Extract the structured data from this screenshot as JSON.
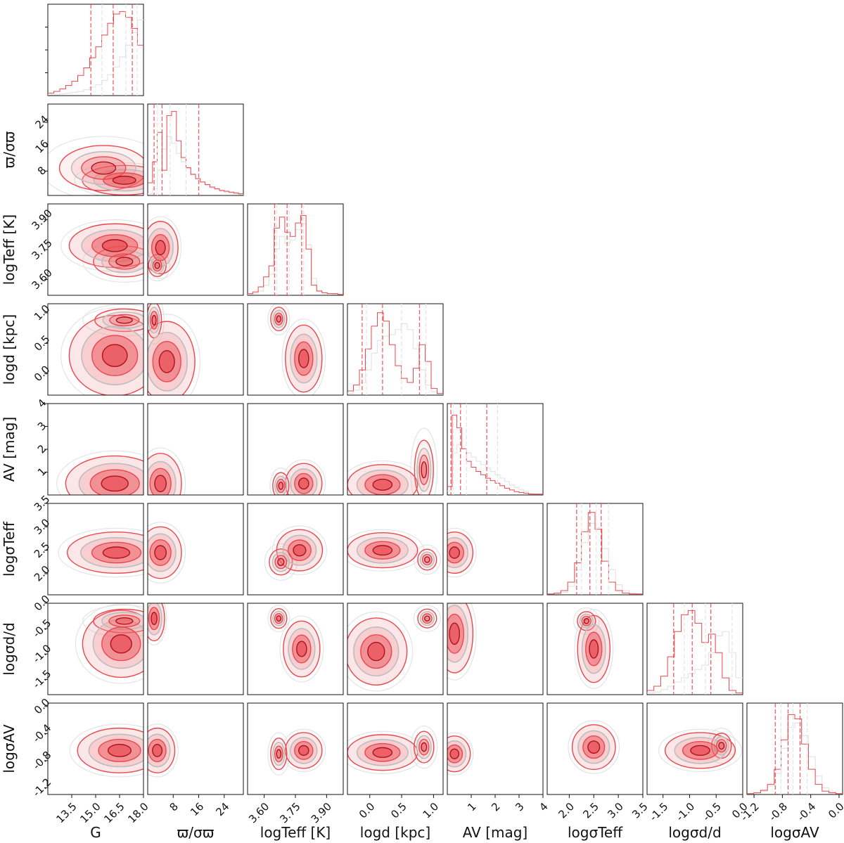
{
  "chart_data": {
    "type": "corner",
    "title": "",
    "series_colors": {
      "primary": "#e8484e",
      "primary_dark": "#b0101a",
      "primary_fill": "#f3a0a3",
      "comparison": "#bdbdbd",
      "comparison_light": "#e4e4e4",
      "frame": "#111111"
    },
    "parameters": [
      {
        "key": "G",
        "xlabel": "G",
        "ylabel": "",
        "range": [
          12.0,
          18.0
        ],
        "ticks": [
          "13.5",
          "15.0",
          "16.5",
          "18.0"
        ],
        "tick_values": [
          13.5,
          15.0,
          16.5,
          18.0
        ]
      },
      {
        "key": "plx_snr",
        "xlabel": "ϖ/σϖ",
        "ylabel": "ϖ/σϖ",
        "range": [
          0,
          30
        ],
        "ticks": [
          "8",
          "16",
          "24"
        ],
        "tick_values": [
          8,
          16,
          24
        ]
      },
      {
        "key": "logTeff",
        "xlabel": "logTeff [K]",
        "ylabel": "logTeff [K]",
        "range": [
          3.52,
          3.98
        ],
        "ticks": [
          "3.60",
          "3.75",
          "3.90"
        ],
        "tick_values": [
          3.6,
          3.75,
          3.9
        ]
      },
      {
        "key": "logd",
        "xlabel": "logd [kpc]",
        "ylabel": "logd [kpc]",
        "range": [
          -0.35,
          1.15
        ],
        "ticks": [
          "0.0",
          "0.5",
          "1.0"
        ],
        "tick_values": [
          0.0,
          0.5,
          1.0
        ]
      },
      {
        "key": "AV",
        "xlabel": "AV [mag]",
        "ylabel": "AV [mag]",
        "range": [
          0,
          4
        ],
        "ticks": [
          "1",
          "2",
          "3",
          "4"
        ],
        "tick_values": [
          1,
          2,
          3,
          4
        ]
      },
      {
        "key": "logsigTeff",
        "xlabel": "logσTeff",
        "ylabel": "logσTeff",
        "range": [
          1.55,
          3.5
        ],
        "ticks": [
          "2.0",
          "2.5",
          "3.0",
          "3.5"
        ],
        "tick_values": [
          2.0,
          2.5,
          3.0,
          3.5
        ]
      },
      {
        "key": "logsigd",
        "xlabel": "logσd/d",
        "ylabel": "logσd/d",
        "range": [
          -1.8,
          0.0
        ],
        "ticks": [
          "-1.5",
          "-1.0",
          "-0.5",
          "0.0"
        ],
        "tick_values": [
          -1.5,
          -1.0,
          -0.5,
          0.0
        ]
      },
      {
        "key": "logsigAV",
        "xlabel": "logσAV",
        "ylabel": "logσAV",
        "range": [
          -1.3,
          0.05
        ],
        "ticks": [
          "-1.2",
          "-0.8",
          "-0.4",
          "0.0"
        ],
        "tick_values": [
          -1.2,
          -0.8,
          -0.4,
          0.0
        ]
      }
    ],
    "histograms": [
      {
        "param": "G",
        "primary": [
          0.03,
          0.05,
          0.08,
          0.12,
          0.17,
          0.24,
          0.33,
          0.45,
          0.58,
          0.72,
          0.86,
          0.97,
          1.0,
          0.93,
          0.8,
          0.6
        ],
        "comparison": [
          0.01,
          0.01,
          0.02,
          0.03,
          0.04,
          0.05,
          0.07,
          0.1,
          0.13,
          0.18,
          0.25,
          0.34,
          0.46,
          0.6,
          0.75,
          0.9
        ],
        "quantiles_primary": [
          14.7,
          16.1,
          17.3
        ],
        "quantiles_comparison": [
          15.4,
          16.9,
          17.6
        ]
      },
      {
        "param": "plx_snr",
        "primary": [
          0.15,
          0.4,
          0.75,
          0.3,
          0.95,
          1.0,
          0.65,
          0.45,
          0.33,
          0.25,
          0.2,
          0.16,
          0.13,
          0.1,
          0.08,
          0.06,
          0.05,
          0.04,
          0.03,
          0.02
        ],
        "comparison": [
          0.02,
          0.08,
          0.3,
          0.55,
          0.7,
          0.62,
          0.5,
          0.4,
          0.32,
          0.26,
          0.2,
          0.16,
          0.12,
          0.09,
          0.07,
          0.05,
          0.04,
          0.03,
          0.02,
          0.01
        ],
        "quantiles_primary": [
          2.0,
          4.5,
          16.0
        ],
        "quantiles_comparison": [
          3.0,
          7.0,
          12.0
        ]
      },
      {
        "param": "logTeff",
        "primary": [
          0.02,
          0.04,
          0.1,
          0.22,
          0.35,
          0.8,
          0.93,
          0.75,
          0.7,
          0.86,
          0.95,
          0.55,
          0.12,
          0.05,
          0.03,
          0.02,
          0.02,
          0.01
        ],
        "comparison": [
          0.01,
          0.02,
          0.05,
          0.12,
          0.25,
          0.55,
          0.7,
          0.62,
          0.66,
          0.78,
          0.85,
          0.6,
          0.2,
          0.06,
          0.03,
          0.02,
          0.01,
          0.01
        ],
        "quantiles_primary": [
          3.65,
          3.71,
          3.78
        ],
        "quantiles_comparison": [
          3.66,
          3.72,
          3.79
        ]
      },
      {
        "param": "logd",
        "primary": [
          0.05,
          0.12,
          0.3,
          0.55,
          0.82,
          0.98,
          0.88,
          0.6,
          0.35,
          0.2,
          0.15,
          0.32,
          0.6,
          0.4,
          0.08,
          0.02
        ],
        "comparison": [
          0.02,
          0.06,
          0.15,
          0.3,
          0.5,
          0.65,
          0.7,
          0.72,
          0.78,
          0.85,
          0.78,
          0.55,
          0.3,
          0.12,
          0.04,
          0.01
        ],
        "quantiles_primary": [
          -0.12,
          0.2,
          0.78
        ],
        "quantiles_comparison": [
          -0.05,
          0.5,
          0.88
        ]
      },
      {
        "param": "AV",
        "primary": [
          0.1,
          0.95,
          0.8,
          0.55,
          0.4,
          0.33,
          0.28,
          0.24,
          0.2,
          0.17,
          0.14,
          0.11,
          0.08,
          0.06,
          0.04,
          0.03,
          0.02,
          0.01,
          0.01,
          0.01
        ],
        "comparison": [
          0.05,
          0.5,
          0.6,
          0.55,
          0.5,
          0.45,
          0.4,
          0.36,
          0.32,
          0.28,
          0.24,
          0.2,
          0.16,
          0.12,
          0.09,
          0.06,
          0.04,
          0.02,
          0.01,
          0.01
        ],
        "quantiles_primary": [
          0.15,
          0.55,
          1.65
        ],
        "quantiles_comparison": [
          0.25,
          0.8,
          2.1
        ]
      },
      {
        "param": "logsigTeff",
        "primary": [
          0.01,
          0.02,
          0.05,
          0.15,
          0.38,
          0.75,
          0.98,
          0.78,
          0.4,
          0.15,
          0.05,
          0.02,
          0.01,
          0.01
        ],
        "comparison": [
          0.01,
          0.01,
          0.03,
          0.1,
          0.3,
          0.62,
          0.85,
          0.8,
          0.55,
          0.3,
          0.12,
          0.05,
          0.02,
          0.01
        ],
        "quantiles_primary": [
          2.15,
          2.42,
          2.65
        ],
        "quantiles_comparison": [
          2.25,
          2.55,
          2.8
        ]
      },
      {
        "param": "logsigd",
        "primary": [
          0.05,
          0.1,
          0.22,
          0.45,
          0.75,
          0.95,
          1.0,
          0.85,
          0.62,
          0.72,
          0.5,
          0.2,
          0.05,
          0.02
        ],
        "comparison": [
          0.02,
          0.03,
          0.06,
          0.1,
          0.15,
          0.2,
          0.25,
          0.3,
          0.35,
          0.5,
          0.7,
          0.75,
          0.5,
          0.2
        ],
        "quantiles_primary": [
          -1.3,
          -0.95,
          -0.6
        ],
        "quantiles_comparison": [
          -1.1,
          -0.7,
          -0.2
        ]
      },
      {
        "param": "logsigAV",
        "primary": [
          0.01,
          0.02,
          0.05,
          0.12,
          0.3,
          0.65,
          0.95,
          0.9,
          0.6,
          0.3,
          0.12,
          0.04,
          0.02,
          0.01
        ],
        "comparison": [
          0.01,
          0.02,
          0.04,
          0.1,
          0.25,
          0.55,
          0.8,
          0.85,
          0.7,
          0.45,
          0.22,
          0.08,
          0.03,
          0.01
        ],
        "quantiles_primary": [
          -0.9,
          -0.72,
          -0.55
        ],
        "quantiles_comparison": [
          -0.82,
          -0.65,
          -0.45
        ]
      }
    ],
    "joint_modes": [
      {
        "x": "G",
        "y": "plx_snr",
        "modes": [
          {
            "x": 16.8,
            "y": 5,
            "sx": 1.2,
            "sy": 2.2,
            "w": 1
          },
          {
            "x": 15.5,
            "y": 9,
            "sx": 1.5,
            "sy": 4,
            "w": 0.6
          }
        ]
      },
      {
        "x": "G",
        "y": "logTeff",
        "modes": [
          {
            "x": 16.2,
            "y": 3.77,
            "sx": 1.3,
            "sy": 0.05,
            "w": 1
          },
          {
            "x": 16.8,
            "y": 3.69,
            "sx": 1.0,
            "sy": 0.04,
            "w": 0.7
          }
        ]
      },
      {
        "x": "plx_snr",
        "y": "logTeff",
        "modes": [
          {
            "x": 4,
            "y": 3.76,
            "sx": 2.5,
            "sy": 0.06,
            "w": 1
          },
          {
            "x": 3,
            "y": 3.67,
            "sx": 1.5,
            "sy": 0.03,
            "w": 0.6
          }
        ]
      },
      {
        "x": "G",
        "y": "logd",
        "modes": [
          {
            "x": 16.2,
            "y": 0.3,
            "sx": 1.3,
            "sy": 0.3,
            "w": 1
          },
          {
            "x": 16.8,
            "y": 0.88,
            "sx": 1.0,
            "sy": 0.1,
            "w": 0.6
          }
        ]
      },
      {
        "x": "plx_snr",
        "y": "logd",
        "modes": [
          {
            "x": 6,
            "y": 0.2,
            "sx": 4,
            "sy": 0.3,
            "w": 1
          },
          {
            "x": 2,
            "y": 0.88,
            "sx": 1.2,
            "sy": 0.15,
            "w": 0.7
          }
        ]
      },
      {
        "x": "logTeff",
        "y": "logd",
        "modes": [
          {
            "x": 3.79,
            "y": 0.25,
            "sx": 0.04,
            "sy": 0.25,
            "w": 1
          },
          {
            "x": 3.67,
            "y": 0.9,
            "sx": 0.02,
            "sy": 0.1,
            "w": 0.7
          }
        ]
      },
      {
        "x": "G",
        "y": "AV",
        "modes": [
          {
            "x": 16.2,
            "y": 0.5,
            "sx": 1.4,
            "sy": 0.55,
            "w": 1
          }
        ]
      },
      {
        "x": "plx_snr",
        "y": "AV",
        "modes": [
          {
            "x": 4,
            "y": 0.5,
            "sx": 3,
            "sy": 0.6,
            "w": 1
          }
        ]
      },
      {
        "x": "logTeff",
        "y": "AV",
        "modes": [
          {
            "x": 3.79,
            "y": 0.5,
            "sx": 0.04,
            "sy": 0.4,
            "w": 1
          },
          {
            "x": 3.68,
            "y": 0.4,
            "sx": 0.02,
            "sy": 0.3,
            "w": 0.7
          }
        ]
      },
      {
        "x": "logd",
        "y": "AV",
        "modes": [
          {
            "x": 0.2,
            "y": 0.45,
            "sx": 0.25,
            "sy": 0.4,
            "w": 1
          },
          {
            "x": 0.85,
            "y": 1.1,
            "sx": 0.08,
            "sy": 0.7,
            "w": 0.6
          }
        ]
      },
      {
        "x": "G",
        "y": "logsigTeff",
        "modes": [
          {
            "x": 16.3,
            "y": 2.45,
            "sx": 1.4,
            "sy": 0.2,
            "w": 1
          }
        ]
      },
      {
        "x": "plx_snr",
        "y": "logsigTeff",
        "modes": [
          {
            "x": 4,
            "y": 2.45,
            "sx": 3,
            "sy": 0.25,
            "w": 1
          }
        ]
      },
      {
        "x": "logTeff",
        "y": "logsigTeff",
        "modes": [
          {
            "x": 3.77,
            "y": 2.5,
            "sx": 0.05,
            "sy": 0.2,
            "w": 1
          },
          {
            "x": 3.68,
            "y": 2.25,
            "sx": 0.03,
            "sy": 0.15,
            "w": 0.6
          }
        ]
      },
      {
        "x": "logd",
        "y": "logsigTeff",
        "modes": [
          {
            "x": 0.2,
            "y": 2.5,
            "sx": 0.25,
            "sy": 0.17,
            "w": 1
          },
          {
            "x": 0.9,
            "y": 2.3,
            "sx": 0.08,
            "sy": 0.12,
            "w": 0.6
          }
        ]
      },
      {
        "x": "AV",
        "y": "logsigTeff",
        "modes": [
          {
            "x": 0.3,
            "y": 2.45,
            "sx": 0.35,
            "sy": 0.2,
            "w": 1
          }
        ]
      },
      {
        "x": "G",
        "y": "logsigd",
        "modes": [
          {
            "x": 16.6,
            "y": -0.8,
            "sx": 1.1,
            "sy": 0.3,
            "w": 1
          },
          {
            "x": 16.8,
            "y": -0.35,
            "sx": 1.0,
            "sy": 0.12,
            "w": 0.7
          }
        ]
      },
      {
        "x": "plx_snr",
        "y": "logsigd",
        "modes": [
          {
            "x": 2,
            "y": -0.3,
            "sx": 1.5,
            "sy": 0.2,
            "w": 1
          }
        ]
      },
      {
        "x": "logTeff",
        "y": "logsigd",
        "modes": [
          {
            "x": 3.78,
            "y": -0.9,
            "sx": 0.04,
            "sy": 0.25,
            "w": 1
          },
          {
            "x": 3.67,
            "y": -0.3,
            "sx": 0.02,
            "sy": 0.1,
            "w": 0.7
          }
        ]
      },
      {
        "x": "logd",
        "y": "logsigd",
        "modes": [
          {
            "x": 0.1,
            "y": -0.95,
            "sx": 0.22,
            "sy": 0.3,
            "w": 1
          },
          {
            "x": 0.9,
            "y": -0.3,
            "sx": 0.08,
            "sy": 0.1,
            "w": 0.6
          }
        ]
      },
      {
        "x": "AV",
        "y": "logsigd",
        "modes": [
          {
            "x": 0.3,
            "y": -0.6,
            "sx": 0.35,
            "sy": 0.35,
            "w": 1
          }
        ]
      },
      {
        "x": "logsigTeff",
        "y": "logsigd",
        "modes": [
          {
            "x": 2.5,
            "y": -0.9,
            "sx": 0.15,
            "sy": 0.3,
            "w": 1
          },
          {
            "x": 2.35,
            "y": -0.35,
            "sx": 0.1,
            "sy": 0.1,
            "w": 0.6
          }
        ]
      },
      {
        "x": "G",
        "y": "logsigAV",
        "modes": [
          {
            "x": 16.5,
            "y": -0.65,
            "sx": 1.2,
            "sy": 0.15,
            "w": 1
          }
        ]
      },
      {
        "x": "plx_snr",
        "y": "logsigAV",
        "modes": [
          {
            "x": 3,
            "y": -0.65,
            "sx": 2.5,
            "sy": 0.15,
            "w": 1
          }
        ]
      },
      {
        "x": "logTeff",
        "y": "logsigAV",
        "modes": [
          {
            "x": 3.79,
            "y": -0.65,
            "sx": 0.04,
            "sy": 0.12,
            "w": 1
          },
          {
            "x": 3.67,
            "y": -0.7,
            "sx": 0.02,
            "sy": 0.12,
            "w": 0.7
          }
        ]
      },
      {
        "x": "logd",
        "y": "logsigAV",
        "modes": [
          {
            "x": 0.2,
            "y": -0.68,
            "sx": 0.25,
            "sy": 0.12,
            "w": 1
          },
          {
            "x": 0.85,
            "y": -0.6,
            "sx": 0.08,
            "sy": 0.12,
            "w": 0.7
          }
        ]
      },
      {
        "x": "AV",
        "y": "logsigAV",
        "modes": [
          {
            "x": 0.3,
            "y": -0.7,
            "sx": 0.3,
            "sy": 0.12,
            "w": 1
          }
        ]
      },
      {
        "x": "logsigTeff",
        "y": "logsigAV",
        "modes": [
          {
            "x": 2.5,
            "y": -0.6,
            "sx": 0.2,
            "sy": 0.15,
            "w": 1
          }
        ]
      },
      {
        "x": "logsigd",
        "y": "logsigAV",
        "modes": [
          {
            "x": -0.8,
            "y": -0.65,
            "sx": 0.3,
            "sy": 0.12,
            "w": 1
          },
          {
            "x": -0.4,
            "y": -0.58,
            "sx": 0.1,
            "sy": 0.1,
            "w": 0.6
          }
        ]
      }
    ]
  }
}
